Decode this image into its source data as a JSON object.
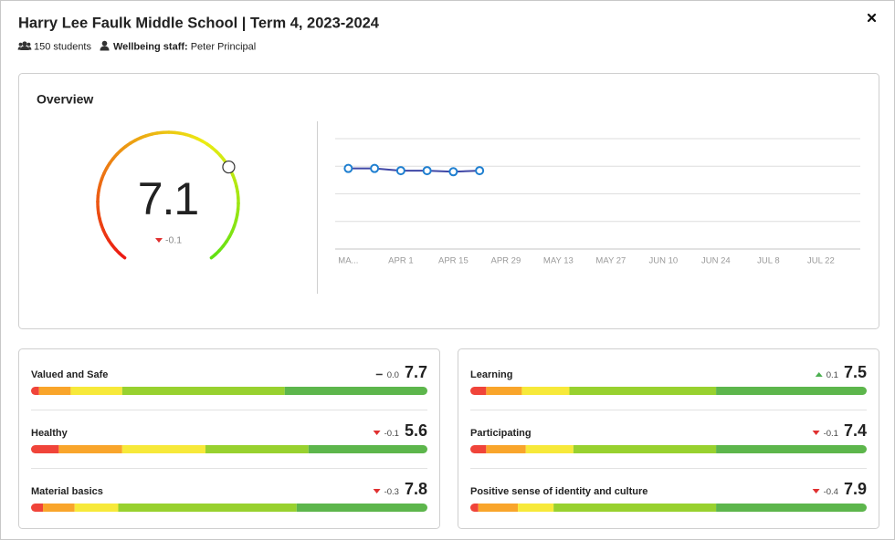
{
  "header": {
    "title": "Harry Lee Faulk Middle School | Term 4, 2023-2024",
    "students": "150 students",
    "staff_label": "Wellbeing staff:",
    "staff_name": "Peter Principal"
  },
  "overview": {
    "title": "Overview",
    "score": 7.1,
    "change": -0.1,
    "gauge_range": [
      0,
      10
    ]
  },
  "chart_data": {
    "type": "line",
    "categories": [
      "MA...",
      null,
      "APR 1",
      null,
      "APR 15",
      null,
      "APR 29",
      null,
      "MAY 13",
      null,
      "MAY 27",
      null,
      "JUN 10",
      null,
      "JUN 24",
      null,
      "JUL 8",
      null,
      "JUL 22",
      null
    ],
    "values": [
      7.3,
      7.3,
      7.1,
      7.1,
      7.0,
      7.1,
      null,
      null,
      null,
      null,
      null,
      null,
      null,
      null,
      null,
      null,
      null,
      null,
      null,
      null
    ],
    "color": "#3f47a6",
    "marker_color": "#1f7fd0",
    "ylim": [
      0,
      10
    ],
    "yticks": [
      0,
      2.5,
      5,
      7.5,
      10
    ],
    "grid": true
  },
  "distribution_colors": [
    "#f0443a",
    "#f9a52b",
    "#f7e93a",
    "#98d12f",
    "#5db64c"
  ],
  "domains": [
    {
      "name": "Valued and Safe",
      "change": 0,
      "change_label": "0.0",
      "score": 7.7,
      "distribution": [
        2,
        8,
        13,
        41,
        36
      ]
    },
    {
      "name": "Healthy",
      "change": -0.1,
      "score": 5.6,
      "distribution": [
        7,
        16,
        21,
        26,
        30
      ]
    },
    {
      "name": "Material basics",
      "change": -0.3,
      "score": 7.8,
      "distribution": [
        3,
        8,
        11,
        45,
        33
      ]
    },
    {
      "name": "Learning",
      "change": 0.1,
      "score": 7.5,
      "distribution": [
        4,
        9,
        12,
        37,
        38
      ]
    },
    {
      "name": "Participating",
      "change": -0.1,
      "score": 7.4,
      "distribution": [
        4,
        10,
        12,
        36,
        38
      ]
    },
    {
      "name": "Positive sense of identity and culture",
      "change": -0.4,
      "score": 7.9,
      "distribution": [
        2,
        10,
        9,
        41,
        38
      ]
    }
  ]
}
